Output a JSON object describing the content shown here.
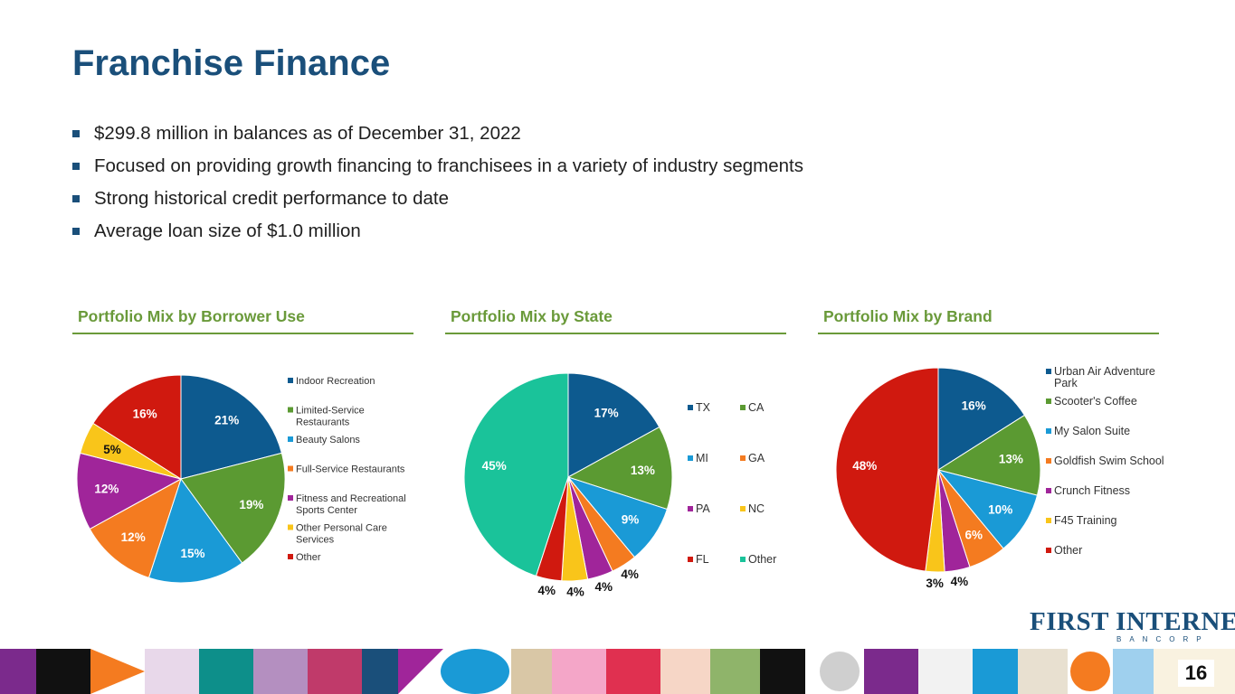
{
  "title": "Franchise Finance",
  "bullets": [
    "$299.8 million in balances as of December 31, 2022",
    "Focused on providing growth financing to franchisees in a variety of industry segments",
    "Strong historical credit performance to date",
    "Average loan size of $1.0 million"
  ],
  "colors": {
    "title": "#1a4f7a",
    "accent_green": "#6a9a3a",
    "bullet": "#1a4f7a"
  },
  "chart_data": [
    {
      "type": "pie",
      "title": "Portfolio Mix by Borrower Use",
      "legend_position": "right",
      "slices": [
        {
          "label": "Indoor Recreation",
          "value": 21,
          "display": "21%",
          "color": "#0d5a8f"
        },
        {
          "label": "Limited-Service Restaurants",
          "value": 19,
          "display": "19%",
          "color": "#5b9a32"
        },
        {
          "label": "Beauty Salons",
          "value": 15,
          "display": "15%",
          "color": "#1a9ad6"
        },
        {
          "label": "Full-Service Restaurants",
          "value": 12,
          "display": "12%",
          "color": "#f47b20"
        },
        {
          "label": "Fitness and Recreational Sports Center",
          "value": 12,
          "display": "12%",
          "color": "#a0259a"
        },
        {
          "label": "Other Personal Care Services",
          "value": 5,
          "display": "5%",
          "color": "#f9c51a"
        },
        {
          "label": "Other",
          "value": 16,
          "display": "16%",
          "color": "#d0190f"
        }
      ]
    },
    {
      "type": "pie",
      "title": "Portfolio Mix by State",
      "legend_position": "right",
      "slices": [
        {
          "label": "TX",
          "value": 17,
          "display": "17%",
          "color": "#0d5a8f"
        },
        {
          "label": "CA",
          "value": 13,
          "display": "13%",
          "color": "#5b9a32"
        },
        {
          "label": "MI",
          "value": 9,
          "display": "9%",
          "color": "#1a9ad6"
        },
        {
          "label": "GA",
          "value": 4,
          "display": "4%",
          "color": "#f47b20"
        },
        {
          "label": "PA",
          "value": 4,
          "display": "4%",
          "color": "#a0259a"
        },
        {
          "label": "NC",
          "value": 4,
          "display": "4%",
          "color": "#f9c51a"
        },
        {
          "label": "FL",
          "value": 4,
          "display": "4%",
          "color": "#d0190f"
        },
        {
          "label": "Other",
          "value": 45,
          "display": "45%",
          "color": "#1ac39a"
        }
      ]
    },
    {
      "type": "pie",
      "title": "Portfolio Mix by Brand",
      "legend_position": "right",
      "slices": [
        {
          "label": "Urban Air Adventure Park",
          "value": 16,
          "display": "16%",
          "color": "#0d5a8f"
        },
        {
          "label": "Scooter's Coffee",
          "value": 13,
          "display": "13%",
          "color": "#5b9a32"
        },
        {
          "label": "My Salon Suite",
          "value": 10,
          "display": "10%",
          "color": "#1a9ad6"
        },
        {
          "label": "Goldfish Swim School",
          "value": 6,
          "display": "6%",
          "color": "#f47b20"
        },
        {
          "label": "Crunch Fitness",
          "value": 4,
          "display": "4%",
          "color": "#a0259a"
        },
        {
          "label": "F45 Training",
          "value": 3,
          "display": "3%",
          "color": "#f9c51a"
        },
        {
          "label": "Other",
          "value": 48,
          "display": "48%",
          "color": "#d0190f"
        }
      ]
    }
  ],
  "logo": {
    "main": "FIRST INTERNET",
    "sub": "BANCORP"
  },
  "page_number": "16"
}
